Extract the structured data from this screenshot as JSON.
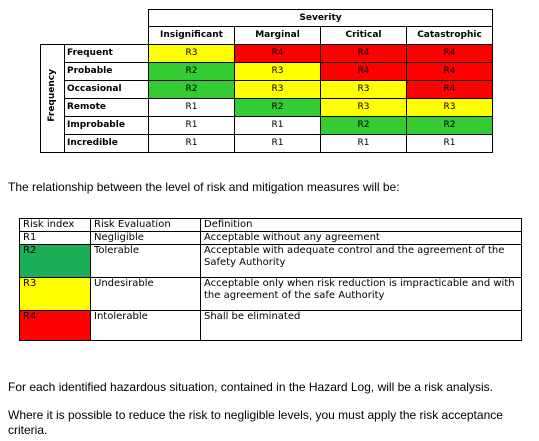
{
  "matrix": {
    "severity_title": "Severity",
    "frequency_title": "Frequency",
    "columns": [
      "Insignificant",
      "Marginal",
      "Critical",
      "Catastrophic"
    ],
    "rows": [
      {
        "label": "Frequent",
        "cells": [
          "R3",
          "R4",
          "R4",
          "R4"
        ]
      },
      {
        "label": "Probable",
        "cells": [
          "R2",
          "R3",
          "R4",
          "R4"
        ]
      },
      {
        "label": "Occasional",
        "cells": [
          "R2",
          "R3",
          "R3",
          "R4"
        ]
      },
      {
        "label": "Remote",
        "cells": [
          "R1",
          "R2",
          "R3",
          "R3"
        ]
      },
      {
        "label": "Improbable",
        "cells": [
          "R1",
          "R1",
          "R2",
          "R2"
        ]
      },
      {
        "label": "Incredible",
        "cells": [
          "R1",
          "R1",
          "R1",
          "R1"
        ]
      }
    ],
    "colors": {
      "R1": "#ffffff",
      "R2": "#33cc33",
      "R3": "#ffff00",
      "R4": "#ff0000"
    }
  },
  "relationship_text": "The relationship between the level of risk and mitigation measures will be:",
  "mitigation": {
    "headers": [
      "Risk index",
      "Risk Evaluation",
      "Definition"
    ],
    "rows": [
      {
        "index": "R1",
        "evaluation": "Negligible",
        "definition": "Acceptable without any agreement"
      },
      {
        "index": "R2",
        "evaluation": "Tolerable",
        "definition": "Acceptable with adequate control and the agreement of the Safety Authority"
      },
      {
        "index": "R3",
        "evaluation": "Undesirable",
        "definition": "Acceptable only when risk reduction is impracticable and with the agreement of the safe Authority"
      },
      {
        "index": "R4",
        "evaluation": "Intolerable",
        "definition": "Shall be eliminated"
      }
    ]
  },
  "paragraph1": "For each identified hazardous situation, contained in the Hazard Log, will be a risk analysis.",
  "paragraph2": "Where it is possible to reduce the risk to negligible levels, you must apply the risk acceptance criteria."
}
